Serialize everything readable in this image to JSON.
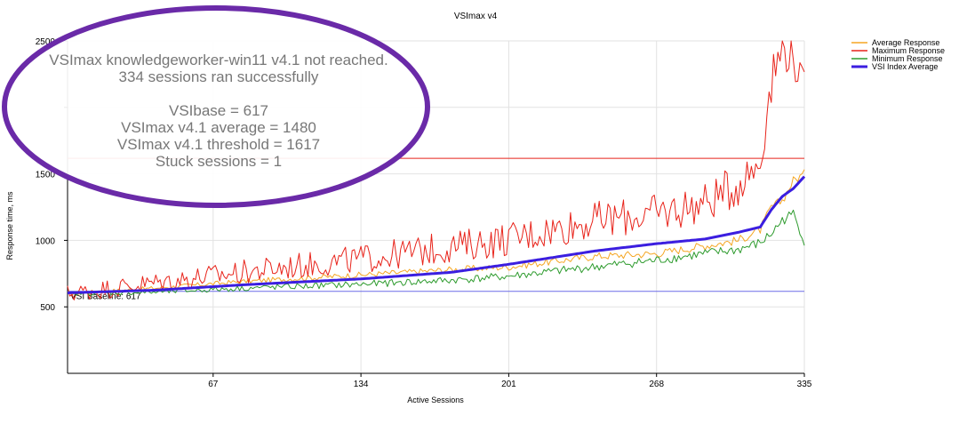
{
  "chart_data": {
    "type": "line",
    "title": "VSImax v4",
    "xlabel": "Active Sessions",
    "ylabel": "Response time, ms",
    "xlim": [
      1,
      335
    ],
    "ylim": [
      0,
      2500
    ],
    "x_ticks": [
      67,
      134,
      201,
      268,
      335
    ],
    "y_ticks": [
      500,
      1000,
      1500,
      2000,
      2500
    ],
    "y_tick_labels": [
      "500",
      "1000",
      "1500",
      "",
      "2500"
    ],
    "grid": true,
    "legend_position": "top-right",
    "series": [
      {
        "name": "Average Response",
        "color": "#F5A623",
        "keypoints": [
          [
            1,
            600
          ],
          [
            40,
            640
          ],
          [
            80,
            690
          ],
          [
            134,
            740
          ],
          [
            175,
            780
          ],
          [
            201,
            800
          ],
          [
            240,
            880
          ],
          [
            268,
            900
          ],
          [
            290,
            960
          ],
          [
            305,
            1000
          ],
          [
            315,
            1080
          ],
          [
            320,
            1250
          ],
          [
            325,
            1300
          ],
          [
            330,
            1450
          ],
          [
            335,
            1500
          ]
        ],
        "noise": 35
      },
      {
        "name": "Maximum Response",
        "color": "#E8231A",
        "keypoints": [
          [
            1,
            600
          ],
          [
            40,
            680
          ],
          [
            80,
            760
          ],
          [
            134,
            860
          ],
          [
            175,
            950
          ],
          [
            201,
            1010
          ],
          [
            240,
            1150
          ],
          [
            268,
            1200
          ],
          [
            290,
            1280
          ],
          [
            305,
            1420
          ],
          [
            315,
            1600
          ],
          [
            320,
            2200
          ],
          [
            325,
            2450
          ],
          [
            330,
            2400
          ],
          [
            335,
            2100
          ]
        ],
        "noise": 170
      },
      {
        "name": "Minimum Response",
        "color": "#2E9B2E",
        "keypoints": [
          [
            1,
            600
          ],
          [
            40,
            610
          ],
          [
            80,
            640
          ],
          [
            134,
            670
          ],
          [
            175,
            700
          ],
          [
            201,
            730
          ],
          [
            240,
            800
          ],
          [
            268,
            850
          ],
          [
            290,
            900
          ],
          [
            305,
            930
          ],
          [
            315,
            980
          ],
          [
            320,
            1050
          ],
          [
            325,
            1150
          ],
          [
            330,
            1200
          ],
          [
            335,
            1000
          ]
        ],
        "noise": 40
      },
      {
        "name": "VSI Index Average",
        "color": "#3B1EE0",
        "keypoints": [
          [
            1,
            605
          ],
          [
            40,
            625
          ],
          [
            80,
            665
          ],
          [
            134,
            710
          ],
          [
            175,
            760
          ],
          [
            201,
            820
          ],
          [
            240,
            920
          ],
          [
            268,
            975
          ],
          [
            290,
            1010
          ],
          [
            305,
            1060
          ],
          [
            315,
            1100
          ],
          [
            320,
            1230
          ],
          [
            325,
            1330
          ],
          [
            330,
            1390
          ],
          [
            335,
            1480
          ]
        ],
        "noise": 0
      }
    ],
    "reference_lines": [
      {
        "label": "VSI Baseline: 617",
        "value": 617,
        "color": "#6B6BE8"
      },
      {
        "label": "",
        "value": 1617,
        "color": "#E8231A"
      }
    ]
  },
  "overlay": {
    "lines": [
      "VSImax knowledgeworker-win11 v4.1 not reached.",
      "334 sessions ran successfully",
      "",
      "VSIbase = 617",
      "VSImax v4.1 average = 1480",
      "VSImax v4.1 threshold = 1617",
      "Stuck sessions = 1"
    ],
    "ellipse_color": "#6A2AA8"
  }
}
